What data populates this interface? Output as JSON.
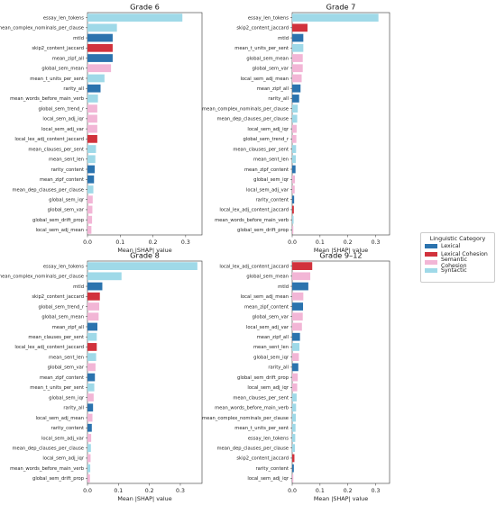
{
  "colors": {
    "Lexical": "#2b73ae",
    "Lexical Cohesion": "#d1323c",
    "Semantic Cohesion": "#f2b6d6",
    "Syntactic": "#9fd9e8"
  },
  "legend": {
    "title": "Linguistic Category",
    "items": [
      {
        "label": "Lexical",
        "color": "#2b73ae"
      },
      {
        "label": "Lexical Cohesion",
        "color": "#d1323c"
      },
      {
        "label": "Semantic Cohesion",
        "color": "#f2b6d6"
      },
      {
        "label": "Syntactic",
        "color": "#9fd9e8"
      }
    ]
  },
  "chart_data": [
    {
      "type": "bar",
      "orientation": "horizontal",
      "title": "Grade 6",
      "xlabel": "Mean |SHAP| value",
      "xlim": [
        0,
        0.35
      ],
      "xticks": [
        0.0,
        0.1,
        0.2,
        0.3
      ],
      "grid": false,
      "categories": [
        "essay_len_tokens",
        "mean_complex_nominals_per_clause",
        "mtld",
        "skip2_content_jaccard",
        "mean_zipf_all",
        "global_sem_mean",
        "mean_t_units_per_sent",
        "rarity_all",
        "mean_words_before_main_verb",
        "global_sem_trend_r",
        "local_sem_adj_iqr",
        "local_sem_adj_var",
        "local_lex_adj_content_jaccard",
        "mean_clauses_per_sent",
        "mean_sent_len",
        "rarity_content",
        "mean_zipf_content",
        "mean_dep_clauses_per_clause",
        "global_sem_iqr",
        "global_sem_var",
        "global_sem_drift_prop",
        "local_sem_adj_mean"
      ],
      "values": [
        0.29,
        0.09,
        0.077,
        0.077,
        0.077,
        0.072,
        0.052,
        0.04,
        0.032,
        0.03,
        0.03,
        0.03,
        0.03,
        0.026,
        0.024,
        0.022,
        0.02,
        0.018,
        0.016,
        0.015,
        0.014,
        0.012
      ],
      "groups": [
        "Syntactic",
        "Syntactic",
        "Lexical",
        "Lexical Cohesion",
        "Lexical",
        "Semantic Cohesion",
        "Syntactic",
        "Lexical",
        "Syntactic",
        "Semantic Cohesion",
        "Semantic Cohesion",
        "Semantic Cohesion",
        "Lexical Cohesion",
        "Syntactic",
        "Syntactic",
        "Lexical",
        "Lexical",
        "Syntactic",
        "Semantic Cohesion",
        "Semantic Cohesion",
        "Semantic Cohesion",
        "Semantic Cohesion"
      ]
    },
    {
      "type": "bar",
      "orientation": "horizontal",
      "title": "Grade 7",
      "xlabel": "Mean |SHAP| value",
      "xlim": [
        0,
        0.35
      ],
      "xticks": [
        0.0,
        0.1,
        0.2,
        0.3
      ],
      "grid": false,
      "categories": [
        "essay_len_tokens",
        "skip2_content_jaccard",
        "mtld",
        "mean_t_units_per_sent",
        "global_sem_mean",
        "global_sem_var",
        "local_sem_adj_mean",
        "mean_zipf_all",
        "rarity_all",
        "mean_complex_nominals_per_clause",
        "mean_dep_clauses_per_clause",
        "local_sem_adj_iqr",
        "global_sem_trend_r",
        "mean_clauses_per_sent",
        "mean_sent_len",
        "mean_zipf_content",
        "global_sem_iqr",
        "local_sem_adj_var",
        "rarity_content",
        "local_lex_adj_content_jaccard",
        "mean_words_before_main_verb",
        "global_sem_drift_prop"
      ],
      "values": [
        0.31,
        0.055,
        0.04,
        0.04,
        0.038,
        0.038,
        0.034,
        0.03,
        0.025,
        0.02,
        0.018,
        0.016,
        0.015,
        0.014,
        0.013,
        0.012,
        0.01,
        0.009,
        0.007,
        0.006,
        0.005,
        0.004
      ],
      "groups": [
        "Syntactic",
        "Lexical Cohesion",
        "Lexical",
        "Syntactic",
        "Semantic Cohesion",
        "Semantic Cohesion",
        "Semantic Cohesion",
        "Lexical",
        "Lexical",
        "Syntactic",
        "Syntactic",
        "Semantic Cohesion",
        "Semantic Cohesion",
        "Syntactic",
        "Syntactic",
        "Lexical",
        "Semantic Cohesion",
        "Semantic Cohesion",
        "Lexical",
        "Lexical Cohesion",
        "Syntactic",
        "Semantic Cohesion"
      ]
    },
    {
      "type": "bar",
      "orientation": "horizontal",
      "title": "Grade 8",
      "xlabel": "Mean |SHAP| value",
      "xlim": [
        0,
        0.37
      ],
      "xticks": [
        0.0,
        0.1,
        0.2,
        0.3
      ],
      "grid": false,
      "categories": [
        "essay_len_tokens",
        "mean_complex_nominals_per_clause",
        "mtld",
        "skip2_content_jaccard",
        "global_sem_trend_r",
        "global_sem_mean",
        "mean_zipf_all",
        "mean_clauses_per_sent",
        "local_lex_adj_content_jaccard",
        "mean_sent_len",
        "global_sem_var",
        "mean_zipf_content",
        "mean_t_units_per_sent",
        "global_sem_iqr",
        "rarity_all",
        "local_sem_adj_mean",
        "rarity_content",
        "local_sem_adj_var",
        "mean_dep_clauses_per_clause",
        "local_sem_adj_iqr",
        "mean_words_before_main_verb",
        "global_sem_drift_prop"
      ],
      "values": [
        0.355,
        0.11,
        0.048,
        0.04,
        0.038,
        0.036,
        0.032,
        0.03,
        0.03,
        0.028,
        0.026,
        0.024,
        0.022,
        0.02,
        0.018,
        0.016,
        0.014,
        0.012,
        0.011,
        0.01,
        0.009,
        0.008
      ],
      "groups": [
        "Syntactic",
        "Syntactic",
        "Lexical",
        "Lexical Cohesion",
        "Semantic Cohesion",
        "Semantic Cohesion",
        "Lexical",
        "Syntactic",
        "Lexical Cohesion",
        "Syntactic",
        "Semantic Cohesion",
        "Lexical",
        "Syntactic",
        "Semantic Cohesion",
        "Lexical",
        "Semantic Cohesion",
        "Lexical",
        "Semantic Cohesion",
        "Syntactic",
        "Semantic Cohesion",
        "Syntactic",
        "Semantic Cohesion"
      ]
    },
    {
      "type": "bar",
      "orientation": "horizontal",
      "title": "Grade 9–12",
      "xlabel": "Mean |SHAP| value",
      "xlim": [
        0,
        0.35
      ],
      "xticks": [
        0.0,
        0.1,
        0.2,
        0.3
      ],
      "grid": false,
      "categories": [
        "local_lex_adj_content_jaccard",
        "global_sem_mean",
        "mtld",
        "local_sem_adj_mean",
        "mean_zipf_content",
        "global_sem_var",
        "local_sem_adj_var",
        "mean_zipf_all",
        "mean_sent_len",
        "global_sem_iqr",
        "rarity_all",
        "global_sem_drift_prop",
        "local_sem_adj_iqr",
        "mean_clauses_per_sent",
        "mean_words_before_main_verb",
        "mean_complex_nominals_per_clause",
        "mean_t_units_per_sent",
        "essay_len_tokens",
        "mean_dep_clauses_per_clause",
        "skip2_content_jaccard",
        "rarity_content",
        "local_sem_adj_iqr"
      ],
      "values": [
        0.072,
        0.065,
        0.058,
        0.04,
        0.039,
        0.038,
        0.035,
        0.028,
        0.026,
        0.024,
        0.022,
        0.02,
        0.018,
        0.016,
        0.014,
        0.013,
        0.012,
        0.011,
        0.01,
        0.008,
        0.006,
        0.004
      ],
      "groups": [
        "Lexical Cohesion",
        "Semantic Cohesion",
        "Lexical",
        "Semantic Cohesion",
        "Lexical",
        "Semantic Cohesion",
        "Semantic Cohesion",
        "Lexical",
        "Syntactic",
        "Semantic Cohesion",
        "Lexical",
        "Semantic Cohesion",
        "Semantic Cohesion",
        "Syntactic",
        "Syntactic",
        "Syntactic",
        "Syntactic",
        "Syntactic",
        "Syntactic",
        "Lexical Cohesion",
        "Lexical",
        "Semantic Cohesion"
      ]
    }
  ]
}
